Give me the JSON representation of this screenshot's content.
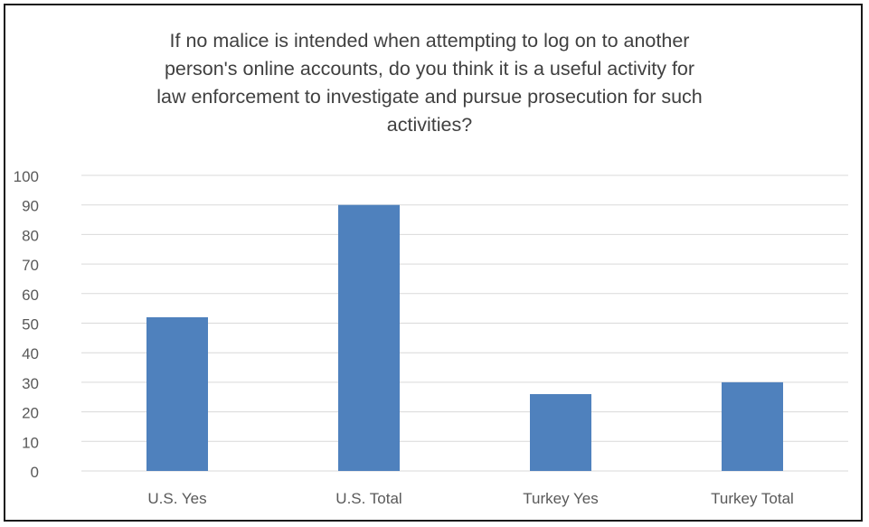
{
  "chart_data": {
    "type": "bar",
    "title_lines": [
      "If no malice is intended when attempting to log on to another",
      "person's online accounts, do you think it is a useful activity for",
      "law enforcement to investigate and pursue prosecution for such",
      "activities?"
    ],
    "categories": [
      "U.S. Yes",
      "U.S. Total",
      "Turkey Yes",
      "Turkey Total"
    ],
    "values": [
      52,
      90,
      26,
      30
    ],
    "xlabel": "",
    "ylabel": "",
    "ylim": [
      0,
      100
    ],
    "yticks": [
      "0",
      "10",
      "20",
      "30",
      "40",
      "50",
      "60",
      "70",
      "80",
      "90",
      "100"
    ],
    "grid": true,
    "legend": "none",
    "bar_color": "#4f81bd",
    "grid_color": "#d9d9d9"
  }
}
